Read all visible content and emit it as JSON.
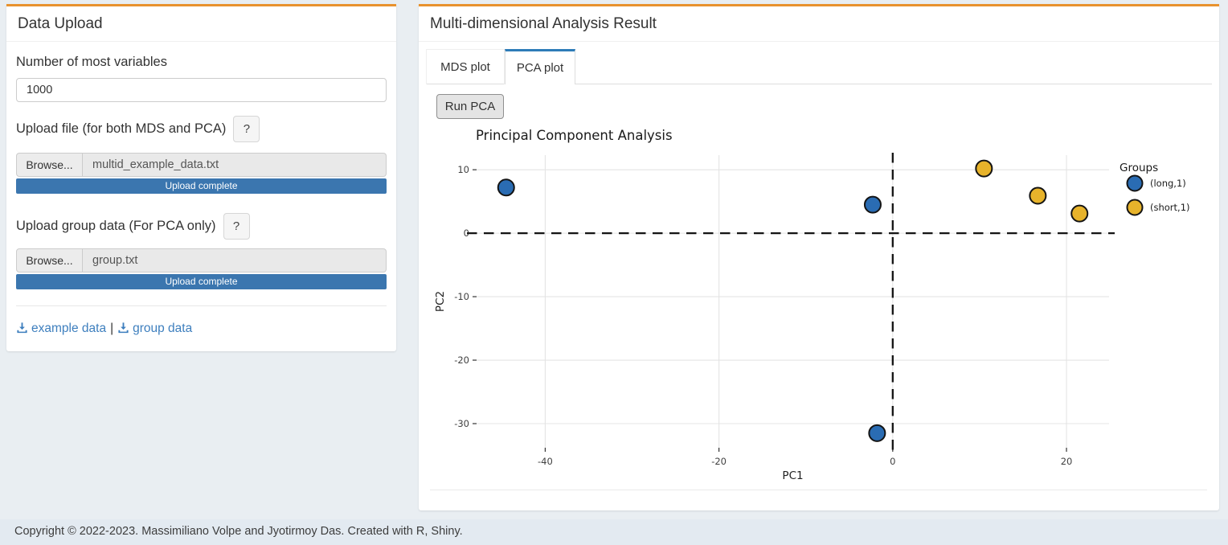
{
  "colors": {
    "accent_orange": "#e8922e",
    "progress_blue": "#3b76af",
    "link_blue": "#3e7fbe",
    "tab_active_blue": "#2e7cb8",
    "group_long_blue": "#2a6cb3",
    "group_short_yellow": "#e7b32b"
  },
  "upload_panel": {
    "title": "Data Upload",
    "num_vars": {
      "label": "Number of most variables",
      "value": "1000"
    },
    "file_upload": {
      "label": "Upload file (for both MDS and PCA)",
      "help": "?",
      "browse": "Browse...",
      "filename": "multid_example_data.txt",
      "progress": "Upload complete"
    },
    "group_upload": {
      "label": "Upload group data (For PCA only)",
      "help": "?",
      "browse": "Browse...",
      "filename": "group.txt",
      "progress": "Upload complete"
    },
    "downloads": {
      "example": "example data",
      "separator": "|",
      "group": "group data"
    }
  },
  "result_panel": {
    "title": "Multi-dimensional Analysis Result",
    "tabs": [
      {
        "label": "MDS plot",
        "active": false
      },
      {
        "label": "PCA plot",
        "active": true
      }
    ],
    "run_button": "Run PCA"
  },
  "chart_data": {
    "type": "scatter",
    "title": "Principal Component Analysis",
    "xlabel": "PC1",
    "ylabel": "PC2",
    "xlim": [
      -47.9,
      24.9
    ],
    "ylim": [
      -33.8,
      12.3
    ],
    "x_ticks": [
      -40,
      -20,
      0,
      20
    ],
    "y_ticks": [
      10,
      0,
      -10,
      -20,
      -30
    ],
    "grid": true,
    "reference_lines": {
      "x": 0,
      "y": 0,
      "style": "dashed"
    },
    "legend": {
      "title": "Groups",
      "position": "right"
    },
    "series": [
      {
        "name": "(long,1)",
        "color": "#2a6cb3",
        "points": [
          {
            "x": -44.5,
            "y": 7.2
          },
          {
            "x": -2.3,
            "y": 4.5
          },
          {
            "x": -1.8,
            "y": -31.5
          }
        ]
      },
      {
        "name": "(short,1)",
        "color": "#e7b32b",
        "points": [
          {
            "x": 10.5,
            "y": 10.2
          },
          {
            "x": 16.7,
            "y": 5.9
          },
          {
            "x": 21.5,
            "y": 3.1
          }
        ]
      }
    ]
  },
  "footer": {
    "text": "Copyright © 2022-2023. Massimiliano Volpe and Jyotirmoy Das. Created with R, Shiny."
  }
}
